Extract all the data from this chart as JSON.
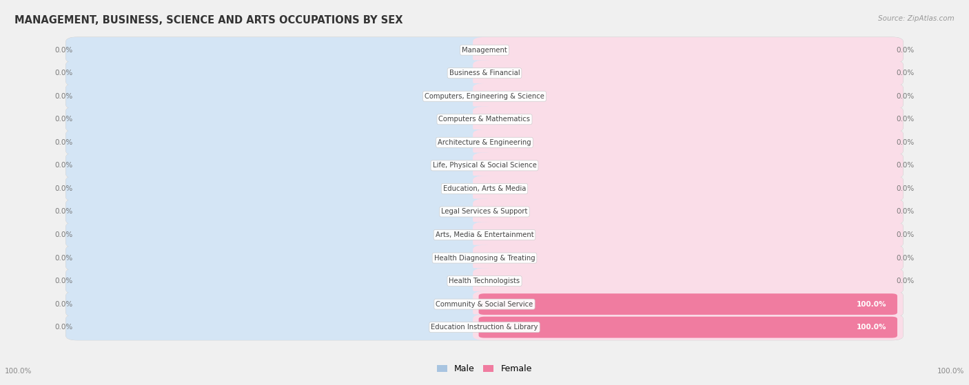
{
  "title": "MANAGEMENT, BUSINESS, SCIENCE AND ARTS OCCUPATIONS BY SEX",
  "source": "Source: ZipAtlas.com",
  "categories": [
    "Management",
    "Business & Financial",
    "Computers, Engineering & Science",
    "Computers & Mathematics",
    "Architecture & Engineering",
    "Life, Physical & Social Science",
    "Education, Arts & Media",
    "Legal Services & Support",
    "Arts, Media & Entertainment",
    "Health Diagnosing & Treating",
    "Health Technologists",
    "Community & Social Service",
    "Education Instruction & Library"
  ],
  "male_values": [
    0.0,
    0.0,
    0.0,
    0.0,
    0.0,
    0.0,
    0.0,
    0.0,
    0.0,
    0.0,
    0.0,
    0.0,
    0.0
  ],
  "female_values": [
    0.0,
    0.0,
    0.0,
    0.0,
    0.0,
    0.0,
    0.0,
    0.0,
    0.0,
    0.0,
    0.0,
    100.0,
    100.0
  ],
  "male_color": "#a8c4e0",
  "female_color": "#f07ca0",
  "male_bg_color": "#d4e5f5",
  "female_bg_color": "#fadde8",
  "male_label": "Male",
  "female_label": "Female",
  "bg_color": "#f0f0f0",
  "row_bg_color": "#e0e0e0",
  "title_color": "#333333",
  "pct_color": "#777777",
  "pct_inside_color": "#ffffff",
  "label_text_color": "#444444"
}
